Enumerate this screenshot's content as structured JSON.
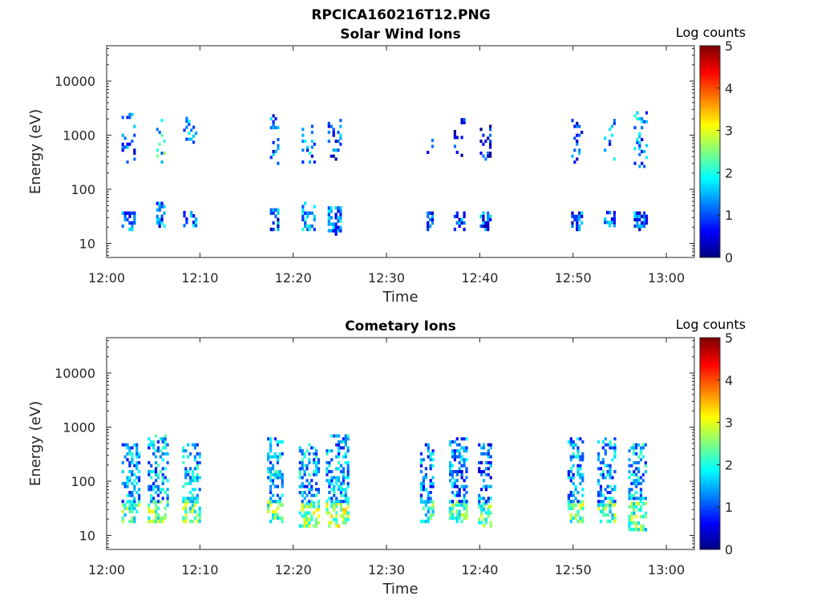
{
  "figure_title": "RPCICA160216T12.PNG",
  "chart_data": [
    {
      "type": "heatmap",
      "title": "Solar Wind Ions",
      "xlabel": "Time",
      "ylabel": "Energy (eV)",
      "x_ticks": [
        "12:00",
        "12:10",
        "12:20",
        "12:30",
        "12:40",
        "12:50",
        "13:00"
      ],
      "xlim_minutes": [
        0,
        63
      ],
      "y_scale": "log",
      "ylim": [
        5.5,
        45000
      ],
      "y_ticks": [
        10,
        100,
        1000,
        10000
      ],
      "y_tick_labels": [
        "10",
        "100",
        "1000",
        "10000"
      ],
      "colorbar": {
        "title": "Log counts",
        "range": [
          0,
          5
        ],
        "ticks": [
          "0",
          "1",
          "2",
          "3",
          "4",
          "5"
        ],
        "colormap": "jet"
      },
      "bursts": [
        {
          "t_start": 1.6,
          "t_end": 2.9,
          "low_band_eV": [
            17,
            36
          ],
          "low_logc": 1.0,
          "high_band_eV": [
            300,
            2500
          ],
          "high_logc": 1.0
        },
        {
          "t_start": 5.3,
          "t_end": 6.3,
          "low_band_eV": [
            17,
            55
          ],
          "low_logc": 1.2,
          "high_band_eV": [
            300,
            2000
          ],
          "high_logc": 1.8
        },
        {
          "t_start": 8.2,
          "t_end": 9.6,
          "low_band_eV": [
            20,
            35
          ],
          "low_logc": 1.2,
          "high_band_eV": [
            700,
            2000
          ],
          "high_logc": 1.6
        },
        {
          "t_start": 17.5,
          "t_end": 18.5,
          "low_band_eV": [
            17,
            40
          ],
          "low_logc": 1.0,
          "high_band_eV": [
            250,
            2500
          ],
          "high_logc": 1.0
        },
        {
          "t_start": 20.9,
          "t_end": 22.2,
          "low_band_eV": [
            17,
            55
          ],
          "low_logc": 1.4,
          "high_band_eV": [
            300,
            1600
          ],
          "high_logc": 1.2
        },
        {
          "t_start": 23.7,
          "t_end": 25.1,
          "low_band_eV": [
            14,
            45
          ],
          "low_logc": 1.3,
          "high_band_eV": [
            300,
            2500
          ],
          "high_logc": 1.0
        },
        {
          "t_start": 34.3,
          "t_end": 34.9,
          "low_band_eV": [
            17,
            35
          ],
          "low_logc": 1.0,
          "high_band_eV": [
            400,
            900
          ],
          "high_logc": 0.5
        },
        {
          "t_start": 37.2,
          "t_end": 38.3,
          "low_band_eV": [
            17,
            35
          ],
          "low_logc": 1.0,
          "high_band_eV": [
            400,
            2000
          ],
          "high_logc": 0.5
        },
        {
          "t_start": 40.0,
          "t_end": 41.2,
          "low_band_eV": [
            17,
            35
          ],
          "low_logc": 1.0,
          "high_band_eV": [
            300,
            1500
          ],
          "high_logc": 0.6
        },
        {
          "t_start": 49.8,
          "t_end": 50.9,
          "low_band_eV": [
            17,
            35
          ],
          "low_logc": 1.0,
          "high_band_eV": [
            300,
            1800
          ],
          "high_logc": 0.8
        },
        {
          "t_start": 53.3,
          "t_end": 54.4,
          "low_band_eV": [
            20,
            35
          ],
          "low_logc": 1.0,
          "high_band_eV": [
            300,
            2000
          ],
          "high_logc": 1.4
        },
        {
          "t_start": 56.5,
          "t_end": 57.9,
          "low_band_eV": [
            17,
            35
          ],
          "low_logc": 1.0,
          "high_band_eV": [
            250,
            2500
          ],
          "high_logc": 1.3
        }
      ]
    },
    {
      "type": "heatmap",
      "title": "Cometary Ions",
      "xlabel": "Time",
      "ylabel": "Energy (eV)",
      "x_ticks": [
        "12:00",
        "12:10",
        "12:20",
        "12:30",
        "12:40",
        "12:50",
        "13:00"
      ],
      "xlim_minutes": [
        0,
        63
      ],
      "y_scale": "log",
      "ylim": [
        5.5,
        45000
      ],
      "y_ticks": [
        10,
        100,
        1000,
        10000
      ],
      "y_tick_labels": [
        "10",
        "100",
        "1000",
        "10000"
      ],
      "colorbar": {
        "title": "Log counts",
        "range": [
          0,
          5
        ],
        "ticks": [
          "0",
          "1",
          "2",
          "3",
          "4",
          "5"
        ],
        "colormap": "jet"
      },
      "bursts": [
        {
          "t_start": 1.6,
          "t_end": 3.4,
          "low_band_eV": [
            17,
            40
          ],
          "low_logc": 2.3,
          "high_band_eV": [
            40,
            500
          ],
          "high_logc": 1.4
        },
        {
          "t_start": 4.4,
          "t_end": 6.5,
          "low_band_eV": [
            17,
            40
          ],
          "low_logc": 2.4,
          "high_band_eV": [
            40,
            700
          ],
          "high_logc": 1.5
        },
        {
          "t_start": 8.1,
          "t_end": 10.0,
          "low_band_eV": [
            17,
            40
          ],
          "low_logc": 2.3,
          "high_band_eV": [
            40,
            500
          ],
          "high_logc": 1.5
        },
        {
          "t_start": 17.2,
          "t_end": 18.9,
          "low_band_eV": [
            17,
            40
          ],
          "low_logc": 2.3,
          "high_band_eV": [
            40,
            600
          ],
          "high_logc": 1.5
        },
        {
          "t_start": 20.6,
          "t_end": 22.7,
          "low_band_eV": [
            14,
            40
          ],
          "low_logc": 2.5,
          "high_band_eV": [
            40,
            500
          ],
          "high_logc": 1.5
        },
        {
          "t_start": 23.5,
          "t_end": 25.9,
          "low_band_eV": [
            14,
            40
          ],
          "low_logc": 2.6,
          "high_band_eV": [
            40,
            700
          ],
          "high_logc": 1.4
        },
        {
          "t_start": 33.6,
          "t_end": 35.0,
          "low_band_eV": [
            17,
            40
          ],
          "low_logc": 2.1,
          "high_band_eV": [
            40,
            500
          ],
          "high_logc": 1.3
        },
        {
          "t_start": 36.7,
          "t_end": 38.5,
          "low_band_eV": [
            17,
            40
          ],
          "low_logc": 2.2,
          "high_band_eV": [
            40,
            600
          ],
          "high_logc": 1.2
        },
        {
          "t_start": 39.8,
          "t_end": 41.2,
          "low_band_eV": [
            14,
            40
          ],
          "low_logc": 2.2,
          "high_band_eV": [
            40,
            500
          ],
          "high_logc": 1.1
        },
        {
          "t_start": 49.4,
          "t_end": 51.0,
          "low_band_eV": [
            17,
            40
          ],
          "low_logc": 2.3,
          "high_band_eV": [
            40,
            600
          ],
          "high_logc": 1.4
        },
        {
          "t_start": 52.6,
          "t_end": 54.5,
          "low_band_eV": [
            17,
            40
          ],
          "low_logc": 2.2,
          "high_band_eV": [
            40,
            600
          ],
          "high_logc": 1.4
        },
        {
          "t_start": 55.9,
          "t_end": 57.8,
          "low_band_eV": [
            12,
            40
          ],
          "low_logc": 2.3,
          "high_band_eV": [
            40,
            500
          ],
          "high_logc": 1.5
        }
      ]
    }
  ]
}
